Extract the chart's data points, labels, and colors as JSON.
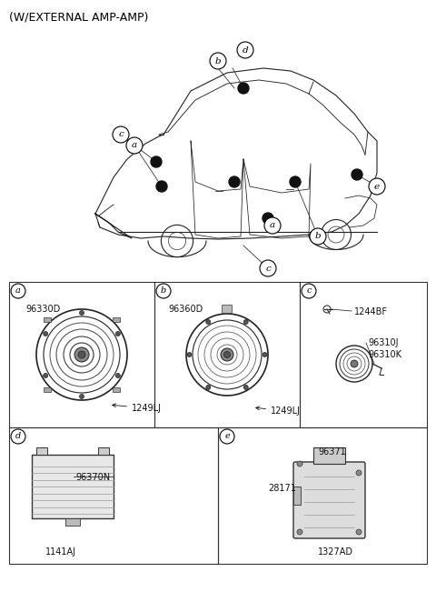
{
  "title": "(W/EXTERNAL AMP-AMP)",
  "bg_color": "#ffffff",
  "border_color": "#000000",
  "text_color": "#000000",
  "sections": {
    "a": {
      "label": "a",
      "part1": "96330D",
      "part2": "1249LJ"
    },
    "b": {
      "label": "b",
      "part1": "96360D",
      "part2": "1249LJ"
    },
    "c": {
      "label": "c",
      "part1": "1244BF",
      "part2": "96310J",
      "part3": "96310K"
    },
    "d": {
      "label": "d",
      "part1": "96370N",
      "part2": "1141AJ"
    },
    "e": {
      "label": "e",
      "part1": "96371",
      "part2": "28171",
      "part3": "1327AD"
    }
  }
}
